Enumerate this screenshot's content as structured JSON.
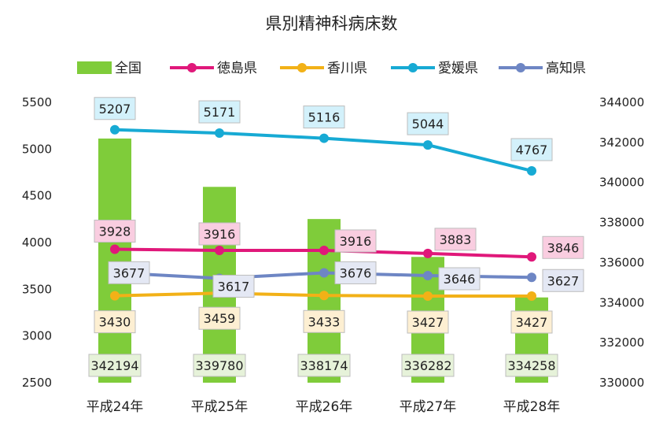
{
  "chart_data": {
    "type": "bar+line",
    "title": "県別精神科病床数",
    "categories": [
      "平成24年",
      "平成25年",
      "平成26年",
      "平成27年",
      "平成28年"
    ],
    "left_axis": {
      "min": 2500,
      "max": 5500,
      "ticks": [
        2500,
        3000,
        3500,
        4000,
        4500,
        5000,
        5500
      ]
    },
    "right_axis": {
      "min": 330000,
      "max": 344000,
      "ticks": [
        330000,
        332000,
        334000,
        336000,
        338000,
        340000,
        342000,
        344000
      ]
    },
    "legend_position": "top",
    "grid": false,
    "series": [
      {
        "name": "全国",
        "type": "bar",
        "axis": "right",
        "color": "#7fcc3a",
        "label_bg": "#e6f2d9",
        "values": [
          342194,
          339780,
          338174,
          336282,
          334258
        ]
      },
      {
        "name": "徳島県",
        "type": "line",
        "axis": "left",
        "color": "#e0187a",
        "label_bg": "#f9cde0",
        "values": [
          3928,
          3916,
          3916,
          3883,
          3846
        ]
      },
      {
        "name": "香川県",
        "type": "line",
        "axis": "left",
        "color": "#f2b117",
        "label_bg": "#fdefd2",
        "values": [
          3430,
          3459,
          3433,
          3427,
          3427
        ]
      },
      {
        "name": "愛媛県",
        "type": "line",
        "axis": "left",
        "color": "#17aad4",
        "label_bg": "#d3f1fb",
        "values": [
          5207,
          5171,
          5116,
          5044,
          4767
        ]
      },
      {
        "name": "高知県",
        "type": "line",
        "axis": "left",
        "color": "#6e86c4",
        "label_bg": "#e4e8f4",
        "values": [
          3677,
          3617,
          3676,
          3646,
          3627
        ]
      }
    ]
  }
}
